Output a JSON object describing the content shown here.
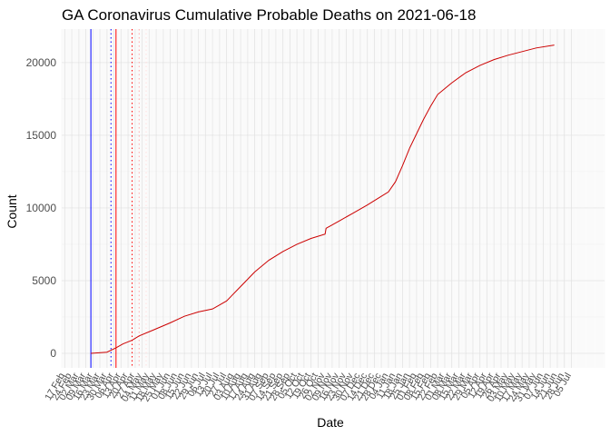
{
  "chart_data": {
    "type": "line",
    "title": "GA Coronavirus Cumulative Probable Deaths on 2021-06-18",
    "xlabel": "Date",
    "ylabel": "Count",
    "x_range": [
      "2020-02-14",
      "2021-08-07"
    ],
    "ylim": [
      -1000,
      22300
    ],
    "y_ticks": [
      0,
      5000,
      10000,
      15000,
      20000
    ],
    "grid": true,
    "legend": "none",
    "x_tick_dates": [
      "2020-02-17",
      "2020-02-24",
      "2020-03-02",
      "2020-03-09",
      "2020-03-16",
      "2020-03-23",
      "2020-03-30",
      "2020-04-06",
      "2020-04-13",
      "2020-04-20",
      "2020-04-27",
      "2020-05-04",
      "2020-05-11",
      "2020-05-18",
      "2020-05-25",
      "2020-06-01",
      "2020-06-08",
      "2020-06-15",
      "2020-06-22",
      "2020-06-29",
      "2020-07-06",
      "2020-07-13",
      "2020-07-20",
      "2020-07-27",
      "2020-08-03",
      "2020-08-10",
      "2020-08-17",
      "2020-08-24",
      "2020-08-31",
      "2020-09-07",
      "2020-09-14",
      "2020-09-21",
      "2020-09-28",
      "2020-10-05",
      "2020-10-12",
      "2020-10-19",
      "2020-10-26",
      "2020-11-02",
      "2020-11-09",
      "2020-11-16",
      "2020-11-23",
      "2020-11-30",
      "2020-12-07",
      "2020-12-14",
      "2020-12-21",
      "2020-12-28",
      "2021-01-04",
      "2021-01-11",
      "2021-01-18",
      "2021-01-25",
      "2021-02-01",
      "2021-02-08",
      "2021-02-15",
      "2021-02-22",
      "2021-03-01",
      "2021-03-08",
      "2021-03-15",
      "2021-03-22",
      "2021-03-29",
      "2021-04-05",
      "2021-04-12",
      "2021-04-19",
      "2021-04-26",
      "2021-05-03",
      "2021-05-10",
      "2021-05-17",
      "2021-05-24",
      "2021-05-31",
      "2021-06-07",
      "2021-06-14",
      "2021-06-21",
      "2021-06-28",
      "2021-07-05"
    ],
    "x_tick_labels": [
      "17 Feb",
      "24 Feb",
      "02 Mar",
      "09 Mar",
      "16 Mar",
      "23 Mar",
      "30 Mar",
      "06 Apr",
      "13 Apr",
      "20 Apr",
      "27 Apr",
      "04 May",
      "11 May",
      "18 May",
      "25 May",
      "01 Jun",
      "08 Jun",
      "15 Jun",
      "22 Jun",
      "29 Jun",
      "06 Jul",
      "13 Jul",
      "20 Jul",
      "27 Jul",
      "03 Aug",
      "10 Aug",
      "17 Aug",
      "24 Aug",
      "31 Aug",
      "07 Sep",
      "14 Sep",
      "21 Sep",
      "28 Sep",
      "05 Oct",
      "12 Oct",
      "19 Oct",
      "26 Oct",
      "02 Nov",
      "09 Nov",
      "16 Nov",
      "23 Nov",
      "30 Nov",
      "07 Dec",
      "14 Dec",
      "21 Dec",
      "28 Dec",
      "04 Jan",
      "11 Jan",
      "18 Jan",
      "25 Jan",
      "01 Feb",
      "08 Feb",
      "15 Feb",
      "22 Feb",
      "01 Mar",
      "08 Mar",
      "15 Mar",
      "22 Mar",
      "29 Mar",
      "05 Apr",
      "12 Apr",
      "19 Apr",
      "26 Apr",
      "03 May",
      "10 May",
      "17 May",
      "24 May",
      "31 May",
      "07 Jun",
      "14 Jun",
      "21 Jun",
      "28 Jun",
      "05 Jul"
    ],
    "vlines": [
      {
        "date": "2020-03-14",
        "color": "#0000ff",
        "style": "solid"
      },
      {
        "date": "2020-04-03",
        "color": "#0000ff",
        "style": "dotted"
      },
      {
        "date": "2020-04-08",
        "color": "#ff0000",
        "style": "solid"
      },
      {
        "date": "2020-04-24",
        "color": "#ff0000",
        "style": "dotted"
      },
      {
        "date": "2020-05-01",
        "color": "#ffaaaa",
        "style": "dotted"
      },
      {
        "date": "2020-05-08",
        "color": "#ffdddd",
        "style": "dotted"
      }
    ],
    "series": [
      {
        "color": "#cc0000",
        "x": [
          "2020-03-14",
          "2020-03-30",
          "2020-04-08",
          "2020-04-15",
          "2020-04-24",
          "2020-05-01",
          "2020-05-15",
          "2020-06-01",
          "2020-06-15",
          "2020-06-29",
          "2020-07-13",
          "2020-07-27",
          "2020-08-10",
          "2020-08-24",
          "2020-09-07",
          "2020-09-21",
          "2020-10-05",
          "2020-10-19",
          "2020-11-02",
          "2020-11-03",
          "2020-11-16",
          "2020-11-30",
          "2020-12-14",
          "2020-12-28",
          "2021-01-04",
          "2021-01-11",
          "2021-01-18",
          "2021-01-25",
          "2021-02-01",
          "2021-02-08",
          "2021-02-15",
          "2021-02-22",
          "2021-03-01",
          "2021-03-08",
          "2021-03-22",
          "2021-04-05",
          "2021-04-19",
          "2021-05-03",
          "2021-05-17",
          "2021-05-31",
          "2021-06-18"
        ],
        "y": [
          0,
          80,
          380,
          650,
          900,
          1200,
          1600,
          2100,
          2550,
          2850,
          3050,
          3600,
          4600,
          5600,
          6400,
          7000,
          7500,
          7900,
          8200,
          8600,
          9100,
          9650,
          10200,
          10800,
          11100,
          11800,
          12900,
          14100,
          15100,
          16100,
          17000,
          17800,
          18200,
          18600,
          19300,
          19800,
          20200,
          20500,
          20750,
          21000,
          21200
        ]
      }
    ]
  }
}
